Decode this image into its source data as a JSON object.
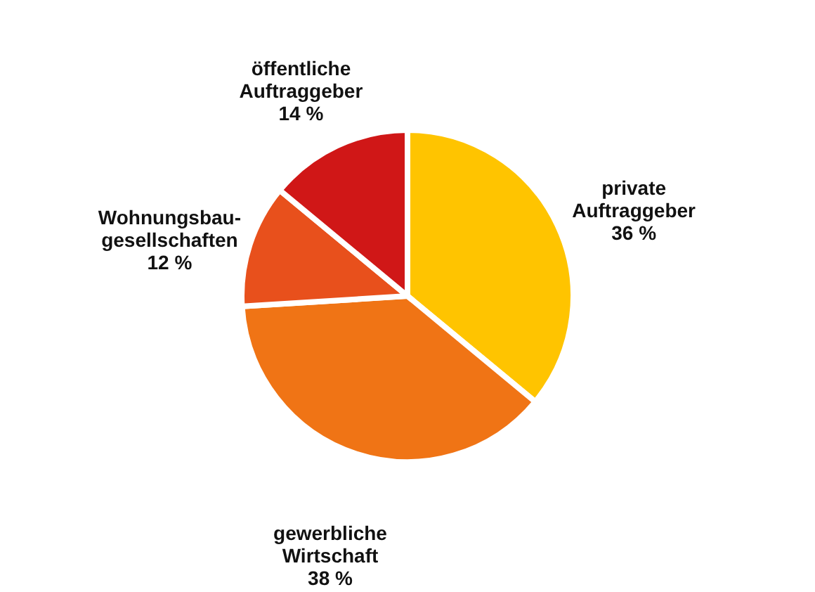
{
  "chart_data": {
    "type": "pie",
    "categories": [
      "private\nAuftraggeber",
      "gewerbliche\nWirtschaft",
      "Wohnungsbau-\ngesellschaften",
      "öffentliche\nAuftraggeber"
    ],
    "values": [
      36,
      38,
      12,
      14
    ],
    "colors": [
      "#ffc400",
      "#f07415",
      "#e8501c",
      "#d01717"
    ],
    "value_labels": [
      "36 %",
      "38 %",
      "12 %",
      "14 %"
    ]
  }
}
